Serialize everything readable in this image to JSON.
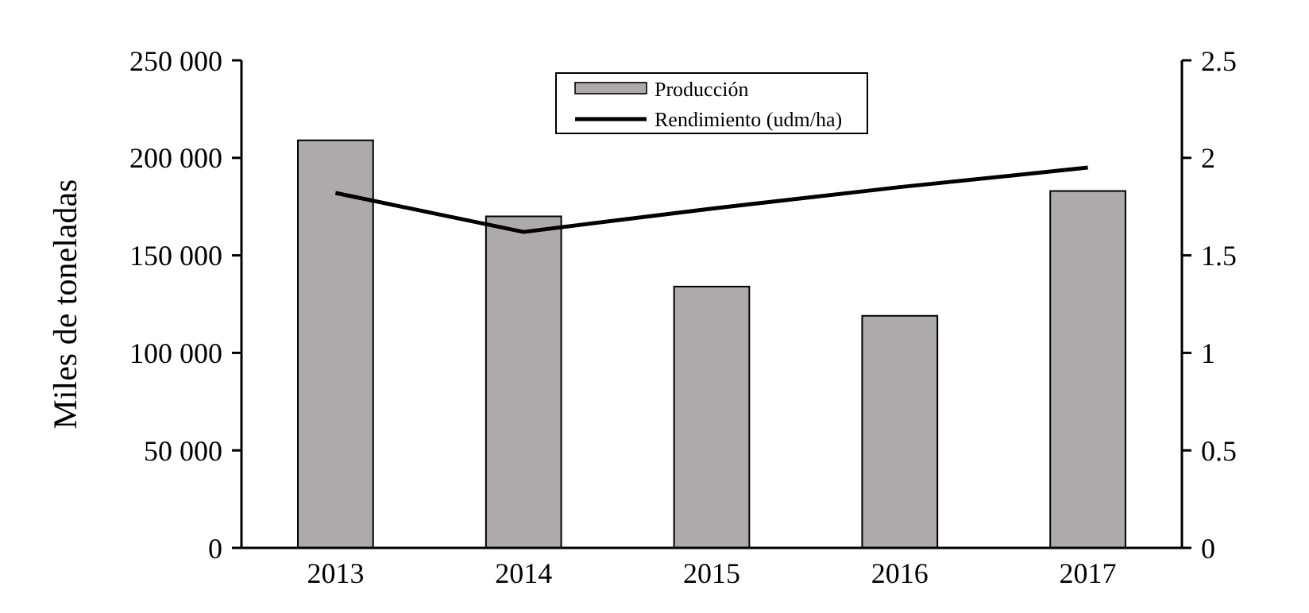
{
  "chart_data": {
    "type": "bar",
    "ylabel": "Miles de toneladas",
    "categories": [
      "2013",
      "2014",
      "2015",
      "2016",
      "2017"
    ],
    "series": [
      {
        "name": "Producción",
        "color": "#aeaaaa",
        "values": [
          209000,
          170000,
          134000,
          119000,
          183000
        ]
      },
      {
        "name": "Rendimiento (udm/ha)",
        "type": "line",
        "axis": "y2",
        "color": "#000000",
        "values": [
          1.82,
          1.62,
          1.74,
          1.85,
          1.95
        ]
      }
    ],
    "ylim": [
      0,
      250000
    ],
    "yticks": [
      {
        "value": 0,
        "label": "0"
      },
      {
        "value": 50000,
        "label": "50 000"
      },
      {
        "value": 100000,
        "label": "100 000"
      },
      {
        "value": 150000,
        "label": "150 000"
      },
      {
        "value": 200000,
        "label": "200 000"
      },
      {
        "value": 250000,
        "label": "250 000"
      }
    ],
    "y2lim": [
      0,
      2.5
    ],
    "y2ticks": [
      0,
      0.5,
      1,
      1.5,
      2,
      2.5
    ],
    "legend": "top",
    "grid": false,
    "marker": "none",
    "line_style": "solid"
  }
}
